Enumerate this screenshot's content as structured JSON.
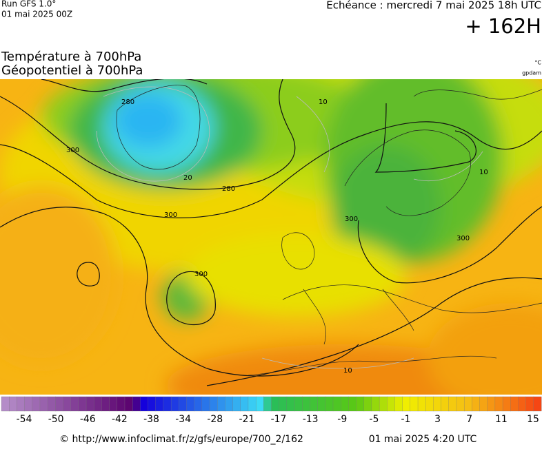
{
  "header": {
    "run": "Run GFS 1.0°",
    "run_date": "01 mai 2025 00Z",
    "valid_time": "Echéance : mercredi 7 mai 2025 18h UTC",
    "lead": "+ 162H"
  },
  "titles": [
    "Température à 700hPa",
    "Géopotentiel à 700hPa"
  ],
  "units": [
    "°C",
    "gpdam"
  ],
  "contour_labels": [
    "280",
    "280",
    "300",
    "300",
    "300",
    "300",
    "300",
    "10",
    "10",
    "10",
    "20"
  ],
  "colorbar": {
    "labels": [
      -54,
      -50,
      -46,
      -42,
      -38,
      -34,
      -28,
      -21,
      -17,
      -13,
      -9,
      -5,
      -1,
      3,
      7,
      11,
      15
    ]
  },
  "footer": {
    "source": "© http://www.infoclimat.fr/z/gfs/europe/700_2/162",
    "generated": "01 mai 2025  4:20 UTC"
  }
}
